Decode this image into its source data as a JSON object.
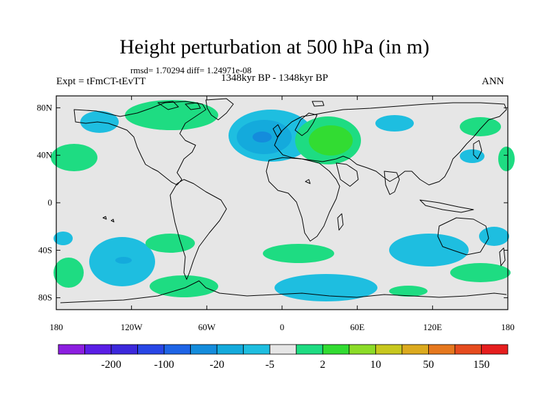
{
  "title": "Height perturbation at 500 hPa (in m)",
  "stats": "rmsd= 1.70294 diff= 1.24971e-08",
  "experiment": "Expt = tFmCT-tEvTT",
  "period": "1348kyr BP - 1348kyr BP",
  "season": "ANN",
  "map_data": {
    "lat_ticks": [
      "80N",
      "40N",
      "0",
      "40S",
      "80S"
    ],
    "lon_ticks": [
      "180",
      "120W",
      "60W",
      "0",
      "60E",
      "120E",
      "180"
    ],
    "colorbar_labels": [
      "-200",
      "-100",
      "-20",
      "-5",
      "2",
      "10",
      "50",
      "150"
    ],
    "colorbar_colors": [
      "#8c1ee0",
      "#5a1ee6",
      "#3c28dc",
      "#2846e6",
      "#1e64e6",
      "#148cdc",
      "#14aadc",
      "#1ebee0",
      "#e6e6e6",
      "#1edc82",
      "#32dc32",
      "#8cdc28",
      "#c8c81e",
      "#dcaa1e",
      "#e6781e",
      "#e64b1e",
      "#e61e1e"
    ],
    "land_fill": "#e6e6e6"
  }
}
